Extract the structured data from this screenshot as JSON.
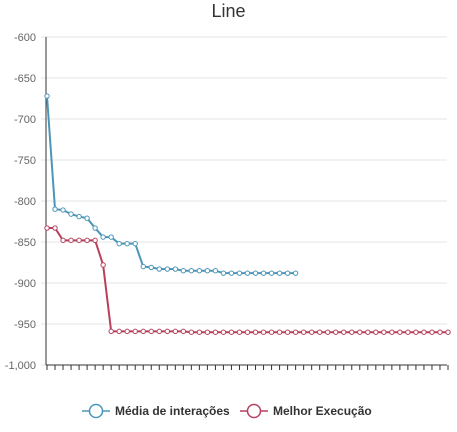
{
  "chart_data": {
    "type": "line",
    "title": "Line",
    "xlabel": "",
    "ylabel": "",
    "ylim": [
      -1000,
      -600
    ],
    "yticks": [
      -600,
      -650,
      -700,
      -750,
      -800,
      -850,
      -900,
      -950,
      -1000
    ],
    "ytick_labels": [
      "-600",
      "-650",
      "-700",
      "-750",
      "-800",
      "-850",
      "-900",
      "-950",
      "-1,000"
    ],
    "x_count": 51,
    "grid": "horizontal",
    "legend_position": "bottom",
    "series": [
      {
        "name": "Média de interações",
        "color": "#4b96b8",
        "values": [
          -672,
          -810,
          -811,
          -816,
          -819,
          -821,
          -833,
          -844,
          -844,
          -852,
          -852,
          -852,
          -880,
          -881,
          -883,
          -883,
          -883,
          -885,
          -885,
          -885,
          -885,
          -885,
          -888,
          -888,
          -888,
          -888,
          -888,
          -888,
          -888,
          -888,
          -888,
          -888
        ]
      },
      {
        "name": "Melhor Execução",
        "color": "#b8405e",
        "values": [
          -833,
          -833,
          -848,
          -848,
          -848,
          -848,
          -848,
          -878,
          -959,
          -959,
          -959,
          -959,
          -959,
          -959,
          -959,
          -959,
          -959,
          -959,
          -960,
          -960,
          -960,
          -960,
          -960,
          -960,
          -960,
          -960,
          -960,
          -960,
          -960,
          -960,
          -960,
          -960,
          -960,
          -960,
          -960,
          -960,
          -960,
          -960,
          -960,
          -960,
          -960,
          -960,
          -960,
          -960,
          -960,
          -960,
          -960,
          -960,
          -960,
          -960,
          -960
        ]
      }
    ]
  }
}
